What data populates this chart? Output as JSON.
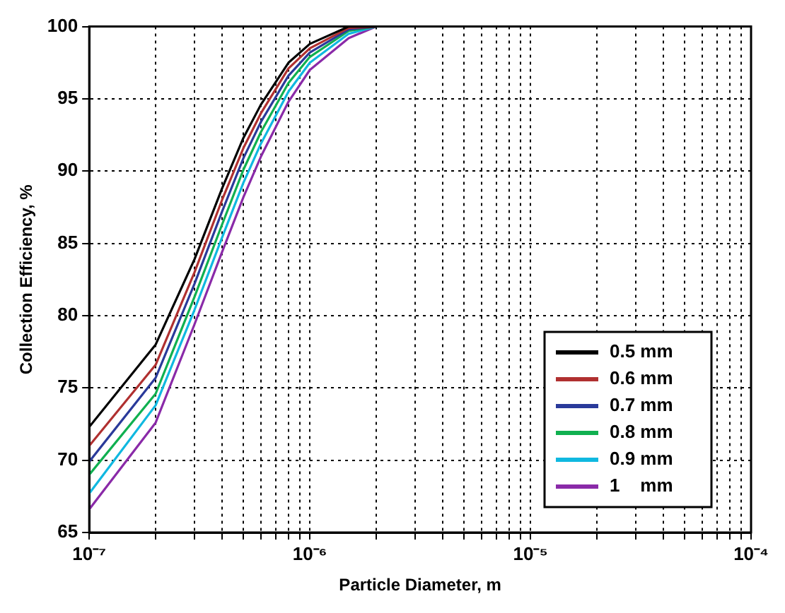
{
  "chart_data": {
    "type": "line",
    "xlabel": "Particle Diameter, m",
    "ylabel": "Collection Efficiency, %",
    "log": "x",
    "grid": true,
    "legend": "bottom right",
    "marker": "none",
    "line_style": "solid",
    "x": [
      1e-07,
      2e-07,
      3e-07,
      4e-07,
      5e-07,
      6e-07,
      8e-07,
      1e-06,
      1.5e-06,
      2e-06
    ],
    "xlim": [
      1e-07,
      0.0001
    ],
    "xticks": [
      {
        "value": 1e-07,
        "label": "10⁻⁷"
      },
      {
        "value": 2e-07,
        "label": null
      },
      {
        "value": 3e-07,
        "label": null
      },
      {
        "value": 4e-07,
        "label": null
      },
      {
        "value": 5e-07,
        "label": null
      },
      {
        "value": 6e-07,
        "label": null
      },
      {
        "value": 7e-07,
        "label": null
      },
      {
        "value": 8e-07,
        "label": null
      },
      {
        "value": 9e-07,
        "label": null
      },
      {
        "value": 1e-06,
        "label": "10⁻⁶"
      },
      {
        "value": 2e-06,
        "label": null
      },
      {
        "value": 3e-06,
        "label": null
      },
      {
        "value": 4e-06,
        "label": null
      },
      {
        "value": 5e-06,
        "label": null
      },
      {
        "value": 6e-06,
        "label": null
      },
      {
        "value": 7e-06,
        "label": null
      },
      {
        "value": 8e-06,
        "label": null
      },
      {
        "value": 9e-06,
        "label": null
      },
      {
        "value": 1e-05,
        "label": "10⁻⁵"
      },
      {
        "value": 2e-05,
        "label": null
      },
      {
        "value": 3e-05,
        "label": null
      },
      {
        "value": 4e-05,
        "label": null
      },
      {
        "value": 5e-05,
        "label": null
      },
      {
        "value": 6e-05,
        "label": null
      },
      {
        "value": 7e-05,
        "label": null
      },
      {
        "value": 8e-05,
        "label": null
      },
      {
        "value": 9e-05,
        "label": null
      },
      {
        "value": 0.0001,
        "label": "10⁻⁴"
      }
    ],
    "ylim": [
      65,
      100
    ],
    "yticks": [
      65,
      70,
      75,
      80,
      85,
      90,
      95,
      100
    ],
    "series": [
      {
        "name": "0.5 mm",
        "color": "#000000",
        "values": [
          72.3,
          78.0,
          83.9,
          88.8,
          92.3,
          94.6,
          97.5,
          98.8,
          100,
          100
        ]
      },
      {
        "name": "0.6 mm",
        "color": "#b03030",
        "values": [
          71.0,
          76.6,
          83.0,
          88.0,
          91.6,
          94.0,
          97.1,
          98.5,
          99.9,
          100
        ]
      },
      {
        "name": "0.7 mm",
        "color": "#2a3a9a",
        "values": [
          69.9,
          75.7,
          82.2,
          87.2,
          90.9,
          93.4,
          96.6,
          98.2,
          99.8,
          100
        ]
      },
      {
        "name": "0.8 mm",
        "color": "#10b050",
        "values": [
          69.0,
          74.6,
          81.3,
          86.3,
          90.1,
          92.7,
          96.1,
          97.9,
          99.7,
          100
        ]
      },
      {
        "name": "0.9 mm",
        "color": "#10b8e0",
        "values": [
          67.7,
          73.8,
          80.4,
          85.4,
          89.2,
          91.9,
          95.5,
          97.5,
          99.5,
          100
        ]
      },
      {
        "name": "1    mm",
        "color": "#8a2aa8",
        "values": [
          66.6,
          72.6,
          79.4,
          84.4,
          88.2,
          91.0,
          94.8,
          97.0,
          99.2,
          100
        ]
      }
    ]
  }
}
